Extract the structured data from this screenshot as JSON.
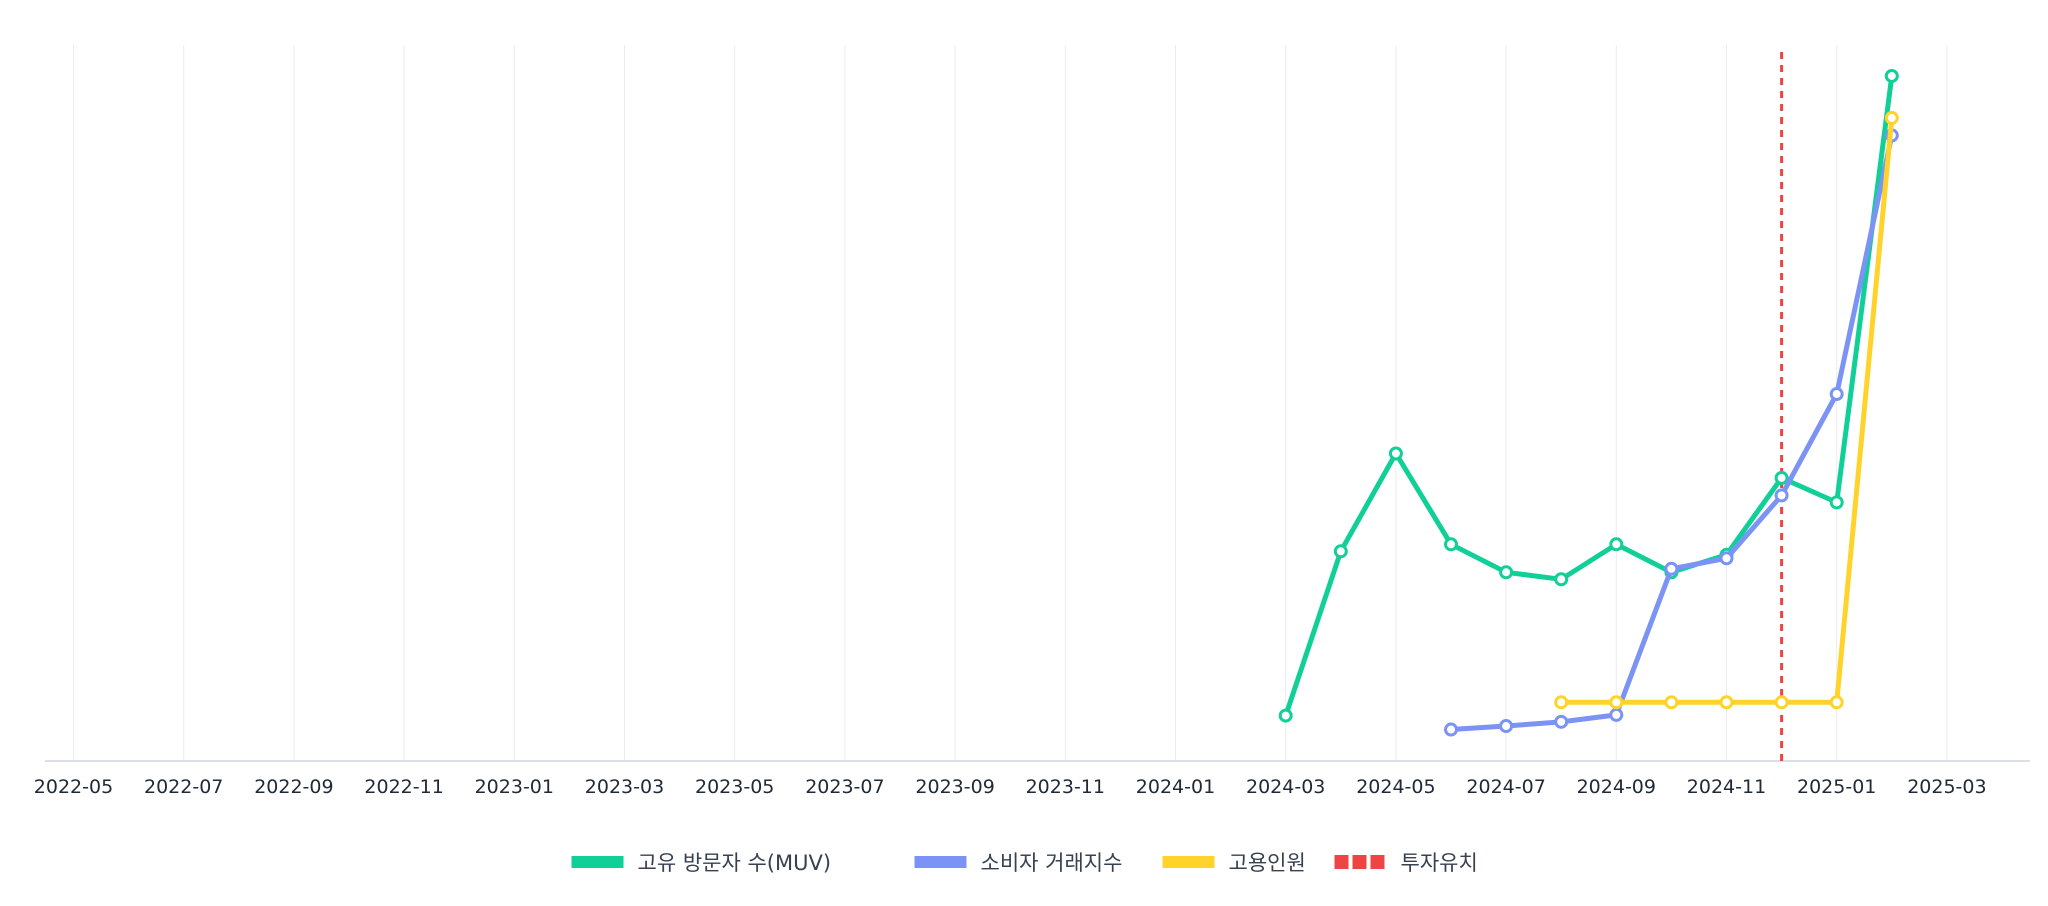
{
  "chart_data": {
    "type": "line",
    "x_ticks": [
      "2022-05",
      "2022-07",
      "2022-09",
      "2022-11",
      "2023-01",
      "2023-03",
      "2023-05",
      "2023-07",
      "2023-09",
      "2023-11",
      "2024-01",
      "2024-03",
      "2024-05",
      "2024-07",
      "2024-09",
      "2024-11",
      "2025-01",
      "2025-03"
    ],
    "xlim": [
      "2022-04",
      "2025-04"
    ],
    "ylim": [
      0,
      100
    ],
    "y_ticks_visible": false,
    "grid": "vertical",
    "legend_position": "bottom-center",
    "series": [
      {
        "name": "고유 방문자 수(MUV)",
        "color": "#10D098",
        "points": [
          {
            "x": "2024-03",
            "y": 6.5
          },
          {
            "x": "2024-04",
            "y": 30
          },
          {
            "x": "2024-05",
            "y": 44
          },
          {
            "x": "2024-06",
            "y": 31
          },
          {
            "x": "2024-07",
            "y": 27
          },
          {
            "x": "2024-08",
            "y": 26
          },
          {
            "x": "2024-09",
            "y": 31
          },
          {
            "x": "2024-10",
            "y": 27
          },
          {
            "x": "2024-11",
            "y": 29.5
          },
          {
            "x": "2024-12",
            "y": 40.5
          },
          {
            "x": "2025-01",
            "y": 37
          },
          {
            "x": "2025-02",
            "y": 98
          }
        ]
      },
      {
        "name": "소비자 거래지수",
        "color": "#7B93F5",
        "points": [
          {
            "x": "2024-06",
            "y": 4.5
          },
          {
            "x": "2024-07",
            "y": 5
          },
          {
            "x": "2024-08",
            "y": 5.6
          },
          {
            "x": "2024-09",
            "y": 6.6
          },
          {
            "x": "2024-10",
            "y": 27.5
          },
          {
            "x": "2024-11",
            "y": 29
          },
          {
            "x": "2024-12",
            "y": 38
          },
          {
            "x": "2025-01",
            "y": 52.5
          },
          {
            "x": "2025-02",
            "y": 89.5
          }
        ]
      },
      {
        "name": "고용인원",
        "color": "#FFD32A",
        "points": [
          {
            "x": "2024-08",
            "y": 8.4
          },
          {
            "x": "2024-09",
            "y": 8.4
          },
          {
            "x": "2024-10",
            "y": 8.4
          },
          {
            "x": "2024-11",
            "y": 8.4
          },
          {
            "x": "2024-12",
            "y": 8.4
          },
          {
            "x": "2025-01",
            "y": 8.4
          },
          {
            "x": "2025-02",
            "y": 92
          }
        ]
      }
    ],
    "markers": [
      {
        "name": "투자유치",
        "x": "2024-12",
        "color": "#EF4444",
        "style": "dashed"
      }
    ]
  }
}
